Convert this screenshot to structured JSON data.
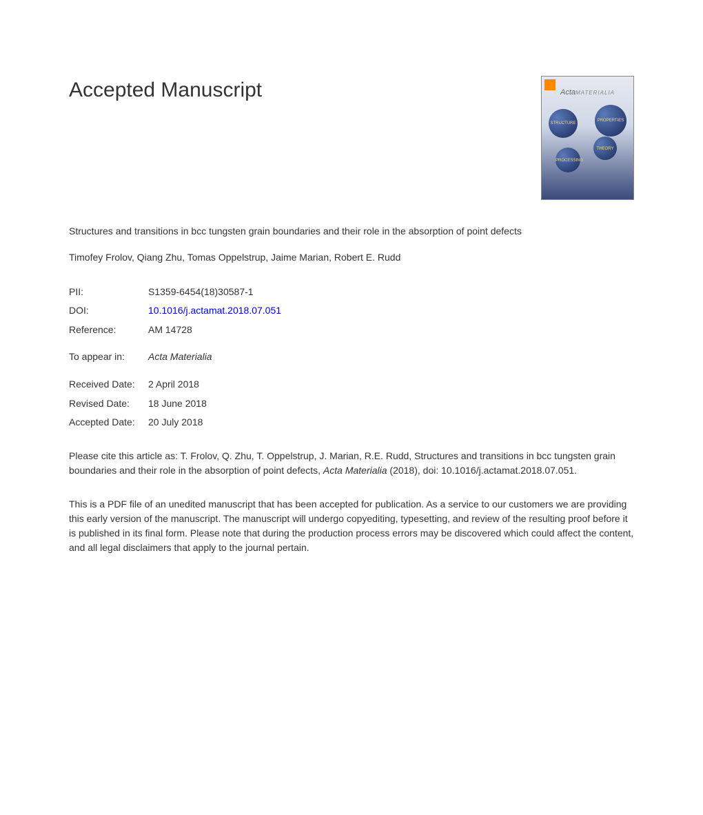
{
  "heading": "Accepted Manuscript",
  "journal_cover": {
    "title": "Acta",
    "subtitle": "MATERIALIA",
    "sphere_labels": [
      "STRUCTURE",
      "PROPERTIES",
      "THEORY",
      "PROCESSING"
    ]
  },
  "article_title": "Structures and transitions in bcc tungsten grain boundaries and their role in the absorption of point defects",
  "authors": "Timofey Frolov, Qiang Zhu, Tomas Oppelstrup, Jaime Marian, Robert E. Rudd",
  "meta": {
    "pii_label": "PII:",
    "pii_value": "S1359-6454(18)30587-1",
    "doi_label": "DOI:",
    "doi_value": "10.1016/j.actamat.2018.07.051",
    "reference_label": "Reference:",
    "reference_value": "AM 14728",
    "appear_label": "To appear in:",
    "appear_value": "Acta Materialia",
    "received_label": "Received Date:",
    "received_value": "2 April 2018",
    "revised_label": "Revised Date:",
    "revised_value": "18 June 2018",
    "accepted_label": "Accepted Date:",
    "accepted_value": "20 July 2018"
  },
  "citation": {
    "prefix": "Please cite this article as: T. Frolov, Q. Zhu, T. Oppelstrup, J. Marian, R.E. Rudd, Structures and transitions in bcc tungsten grain boundaries and their role in the absorption of point defects, ",
    "journal": "Acta Materialia",
    "suffix": " (2018), doi: 10.1016/j.actamat.2018.07.051."
  },
  "disclaimer": "This is a PDF file of an unedited manuscript that has been accepted for publication. As a service to our customers we are providing this early version of the manuscript. The manuscript will undergo copyediting, typesetting, and review of the resulting proof before it is published in its final form. Please note that during the production process errors may be discovered which could affect the content, and all legal disclaimers that apply to the journal pertain.",
  "colors": {
    "text": "#333333",
    "link": "#0000ee",
    "background": "#ffffff"
  }
}
